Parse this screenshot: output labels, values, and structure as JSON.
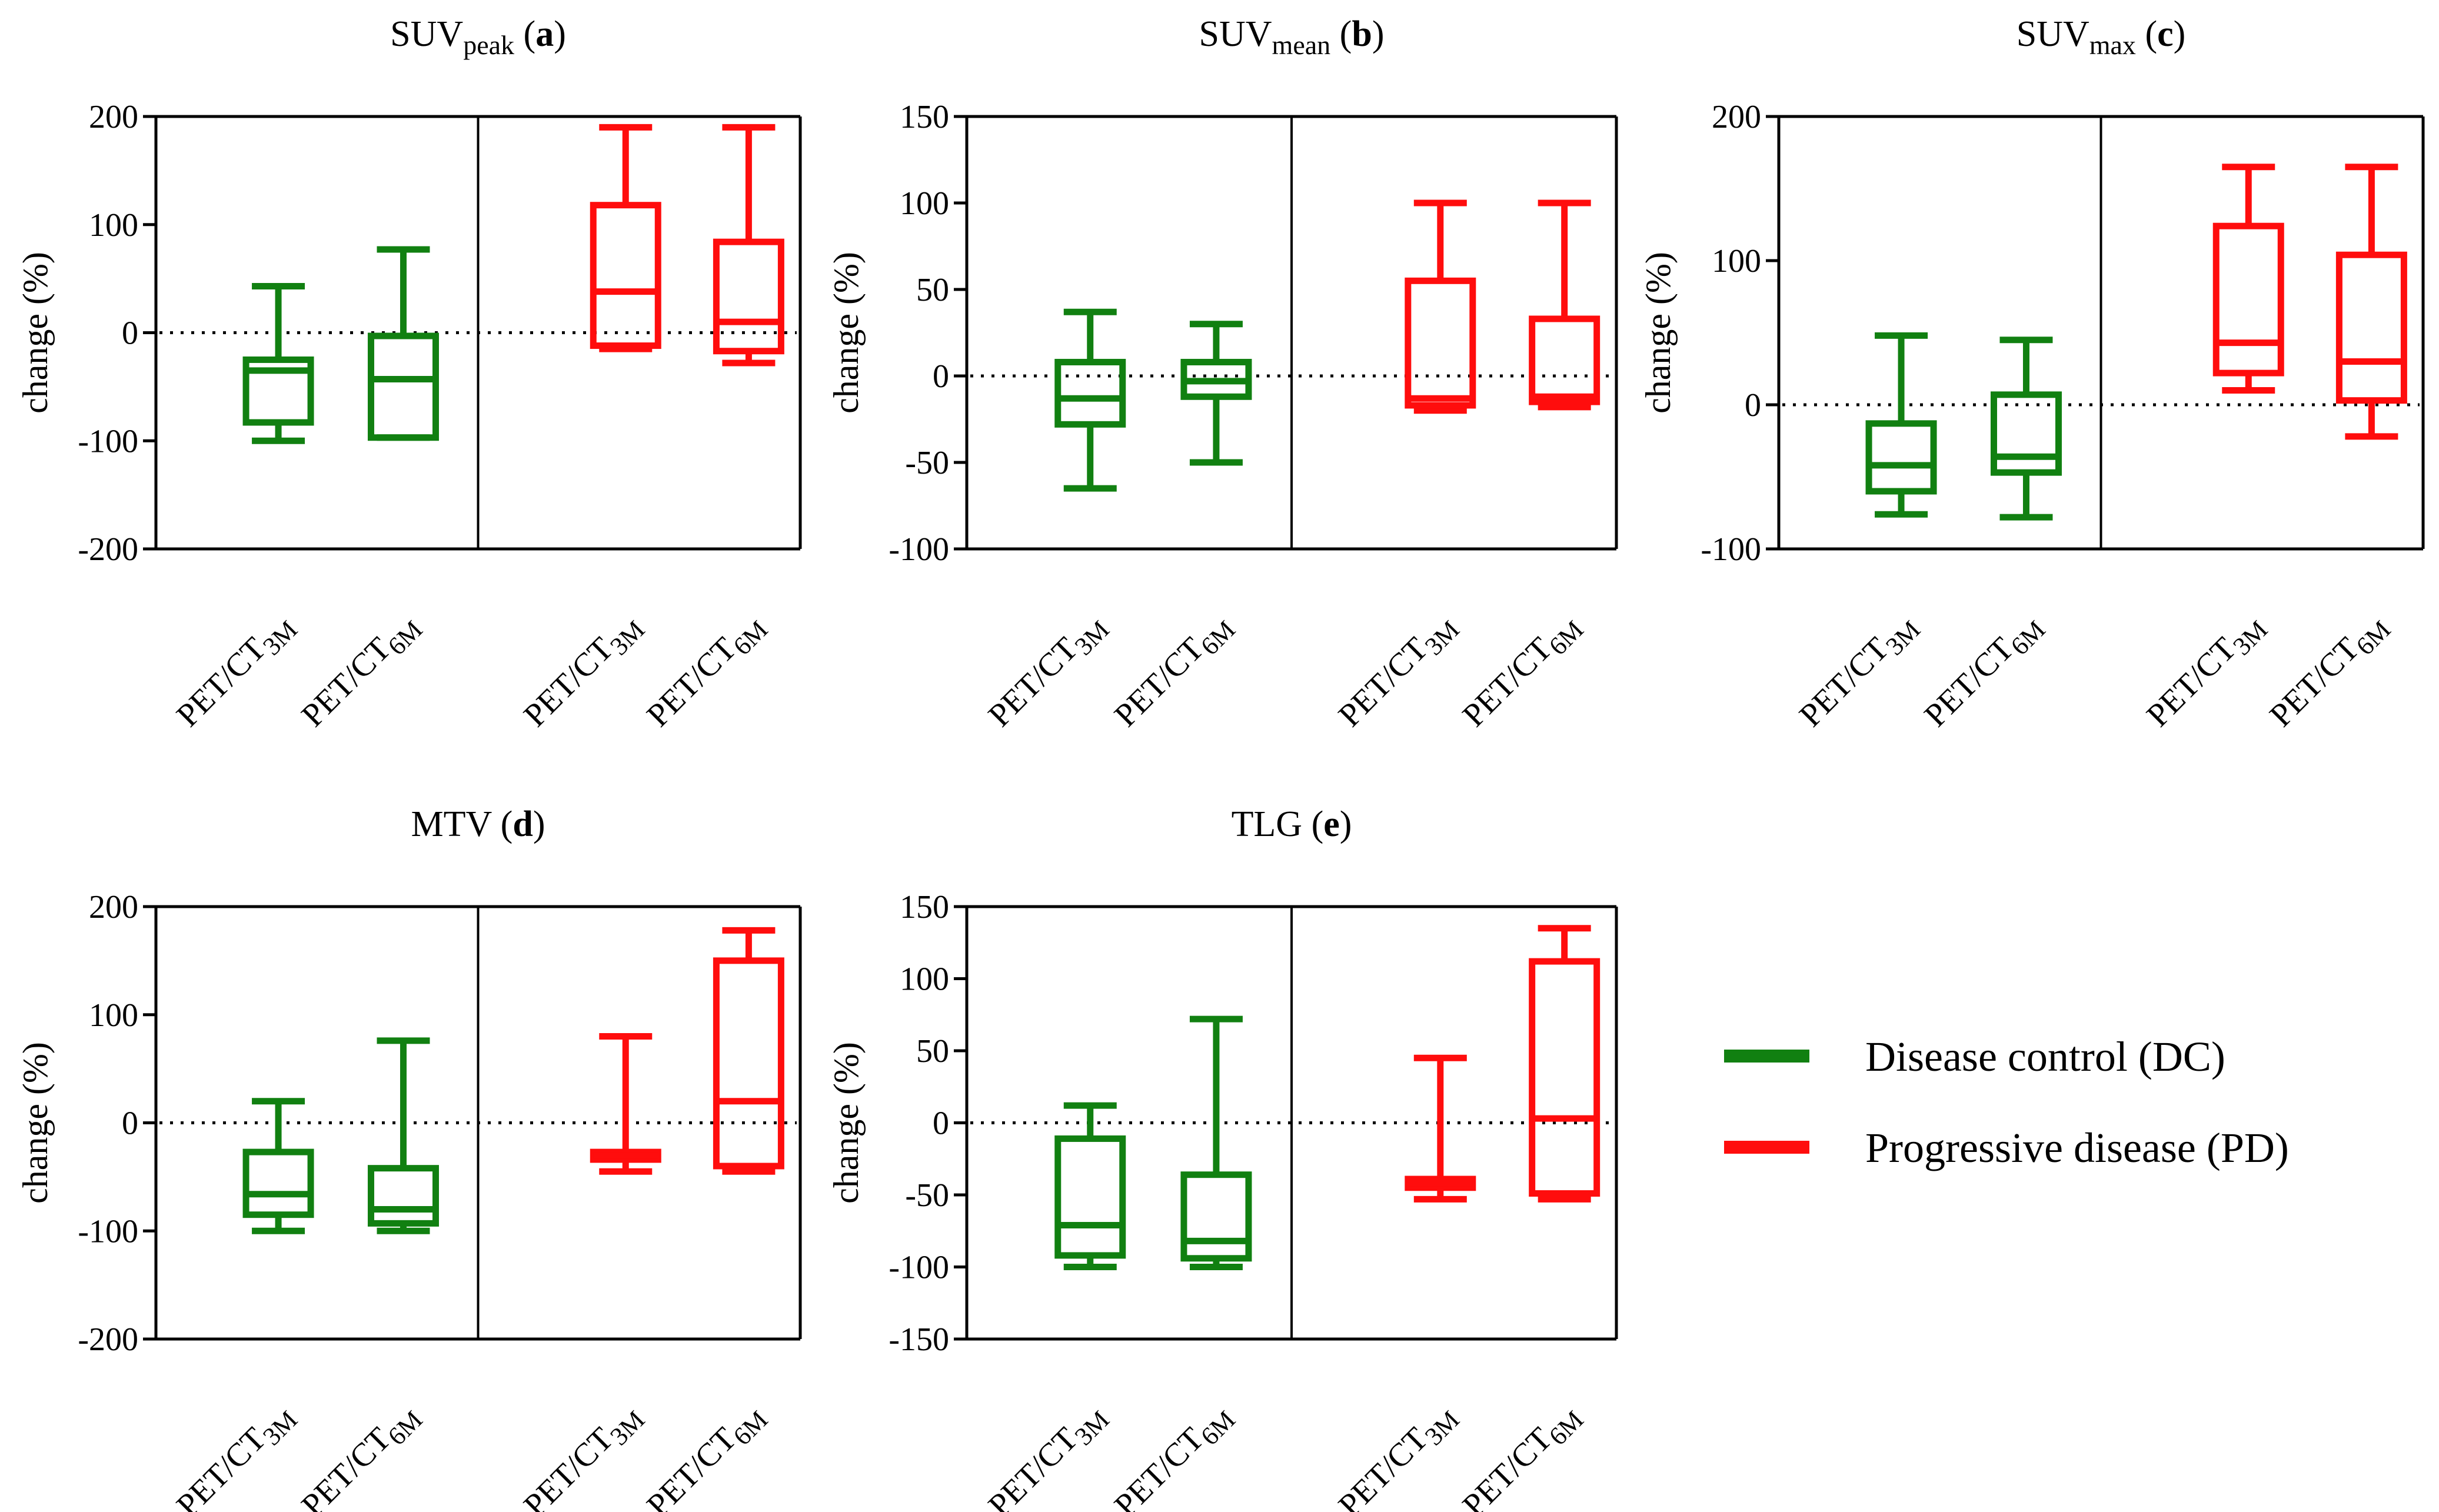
{
  "colors": {
    "dc": "#118011",
    "pd": "#ff0d0d"
  },
  "legend": {
    "dc": "Disease control (DC)",
    "pd": "Progressive disease (PD)"
  },
  "chart_data": [
    {
      "type": "box",
      "title": {
        "main": "SUV",
        "sub": "peak",
        "letter": "a"
      },
      "ylabel": "change (%)",
      "ylim": [
        -200,
        200
      ],
      "yticks": [
        200,
        100,
        0,
        -100,
        -200
      ],
      "categories": [
        {
          "base": "PET/CT",
          "sub": "3M",
          "group": "dc"
        },
        {
          "base": "PET/CT",
          "sub": "6M",
          "group": "dc"
        },
        {
          "base": "PET/CT",
          "sub": "3M",
          "group": "pd"
        },
        {
          "base": "PET/CT",
          "sub": "6M",
          "group": "pd"
        }
      ],
      "boxes": [
        {
          "min": -100,
          "q1": -83,
          "median": -35,
          "q3": -25,
          "max": 43
        },
        {
          "min": -97,
          "q1": -97,
          "median": -43,
          "q3": -3,
          "max": 77
        },
        {
          "min": -15,
          "q1": -12,
          "median": 38,
          "q3": 118,
          "max": 190
        },
        {
          "min": -28,
          "q1": -17,
          "median": 10,
          "q3": 84,
          "max": 190
        }
      ]
    },
    {
      "type": "box",
      "title": {
        "main": "SUV",
        "sub": "mean",
        "letter": "b"
      },
      "ylabel": "change (%)",
      "ylim": [
        -100,
        150
      ],
      "yticks": [
        150,
        100,
        50,
        0,
        -50,
        -100
      ],
      "categories": [
        {
          "base": "PET/CT",
          "sub": "3M",
          "group": "dc"
        },
        {
          "base": "PET/CT",
          "sub": "6M",
          "group": "dc"
        },
        {
          "base": "PET/CT",
          "sub": "3M",
          "group": "pd"
        },
        {
          "base": "PET/CT",
          "sub": "6M",
          "group": "pd"
        }
      ],
      "boxes": [
        {
          "min": -65,
          "q1": -28,
          "median": -13,
          "q3": 8,
          "max": 37
        },
        {
          "min": -50,
          "q1": -12,
          "median": -3,
          "q3": 8,
          "max": 30
        },
        {
          "min": -20,
          "q1": -17,
          "median": -13,
          "q3": 55,
          "max": 100
        },
        {
          "min": -18,
          "q1": -15,
          "median": -12,
          "q3": 33,
          "max": 100
        }
      ]
    },
    {
      "type": "box",
      "title": {
        "main": "SUV",
        "sub": "max",
        "letter": "c"
      },
      "ylabel": "change (%)",
      "ylim": [
        -100,
        200
      ],
      "yticks": [
        200,
        100,
        0,
        -100
      ],
      "categories": [
        {
          "base": "PET/CT",
          "sub": "3M",
          "group": "dc"
        },
        {
          "base": "PET/CT",
          "sub": "6M",
          "group": "dc"
        },
        {
          "base": "PET/CT",
          "sub": "3M",
          "group": "pd"
        },
        {
          "base": "PET/CT",
          "sub": "6M",
          "group": "pd"
        }
      ],
      "boxes": [
        {
          "min": -76,
          "q1": -60,
          "median": -42,
          "q3": -13,
          "max": 48
        },
        {
          "min": -78,
          "q1": -47,
          "median": -36,
          "q3": 7,
          "max": 45
        },
        {
          "min": 10,
          "q1": 22,
          "median": 43,
          "q3": 124,
          "max": 165
        },
        {
          "min": -22,
          "q1": 3,
          "median": 30,
          "q3": 104,
          "max": 165
        }
      ]
    },
    {
      "type": "box",
      "title": {
        "main": "MTV",
        "sub": "",
        "letter": "d"
      },
      "ylabel": "change (%)",
      "ylim": [
        -200,
        200
      ],
      "yticks": [
        200,
        100,
        0,
        -100,
        -200
      ],
      "categories": [
        {
          "base": "PET/CT",
          "sub": "3M",
          "group": "dc"
        },
        {
          "base": "PET/CT",
          "sub": "6M",
          "group": "dc"
        },
        {
          "base": "PET/CT",
          "sub": "3M",
          "group": "pd"
        },
        {
          "base": "PET/CT",
          "sub": "6M",
          "group": "pd"
        }
      ],
      "boxes": [
        {
          "min": -100,
          "q1": -85,
          "median": -66,
          "q3": -27,
          "max": 20
        },
        {
          "min": -100,
          "q1": -93,
          "median": -80,
          "q3": -42,
          "max": 76
        },
        {
          "min": -45,
          "q1": -34,
          "median": -30,
          "q3": -27,
          "max": 80
        },
        {
          "min": -45,
          "q1": -40,
          "median": 20,
          "q3": 150,
          "max": 178
        }
      ]
    },
    {
      "type": "box",
      "title": {
        "main": "TLG",
        "sub": "",
        "letter": "e"
      },
      "ylabel": "change (%)",
      "ylim": [
        -150,
        150
      ],
      "yticks": [
        150,
        100,
        50,
        0,
        -50,
        -100,
        -150
      ],
      "categories": [
        {
          "base": "PET/CT",
          "sub": "3M",
          "group": "dc"
        },
        {
          "base": "PET/CT",
          "sub": "6M",
          "group": "dc"
        },
        {
          "base": "PET/CT",
          "sub": "3M",
          "group": "pd"
        },
        {
          "base": "PET/CT",
          "sub": "6M",
          "group": "pd"
        }
      ],
      "boxes": [
        {
          "min": -100,
          "q1": -92,
          "median": -71,
          "q3": -11,
          "max": 12
        },
        {
          "min": -100,
          "q1": -94,
          "median": -82,
          "q3": -36,
          "max": 72
        },
        {
          "min": -53,
          "q1": -45,
          "median": -42,
          "q3": -39,
          "max": 45
        },
        {
          "min": -53,
          "q1": -49,
          "median": 3,
          "q3": 112,
          "max": 135
        }
      ]
    }
  ]
}
